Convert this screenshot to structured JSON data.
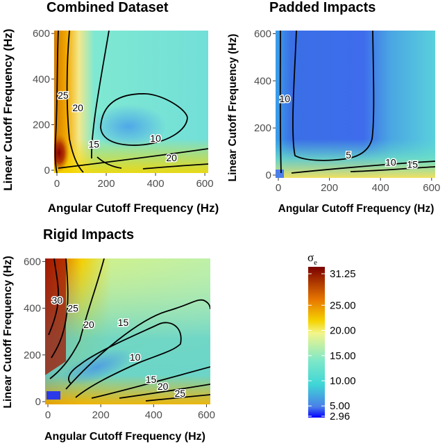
{
  "chart_data": [
    {
      "type": "heatmap",
      "id": "combined",
      "title": "Combined Dataset",
      "xlabel": "Angular Cutoff Frequency (Hz)",
      "ylabel": "Linear Cutoff Frequency (Hz)",
      "xlim": [
        0,
        625
      ],
      "ylim": [
        0,
        625
      ],
      "xticks": [
        0,
        200,
        400,
        600
      ],
      "yticks": [
        0,
        200,
        400,
        600
      ],
      "contour_labels": [
        {
          "text": "25",
          "x": 25,
          "y": 330
        },
        {
          "text": "20",
          "x": 85,
          "y": 275
        },
        {
          "text": "15",
          "x": 150,
          "y": 115
        },
        {
          "text": "10",
          "x": 400,
          "y": 140
        },
        {
          "text": "20",
          "x": 465,
          "y": 55
        }
      ]
    },
    {
      "type": "heatmap",
      "id": "padded",
      "title": "Padded Impacts",
      "xlabel": "Angular Cutoff Frequency (Hz)",
      "ylabel": "Linear Cutoff Frequency (Hz)",
      "xlim": [
        0,
        625
      ],
      "ylim": [
        0,
        625
      ],
      "xticks": [
        0,
        200,
        400,
        600
      ],
      "yticks": [
        0,
        200,
        400,
        600
      ],
      "contour_labels": [
        {
          "text": "10",
          "x": 25,
          "y": 325
        },
        {
          "text": "5",
          "x": 275,
          "y": 85
        },
        {
          "text": "10",
          "x": 440,
          "y": 55
        },
        {
          "text": "15",
          "x": 525,
          "y": 45
        }
      ]
    },
    {
      "type": "heatmap",
      "id": "rigid",
      "title": "Rigid Impacts",
      "xlabel": "Angular Cutoff Frequency (Hz)",
      "ylabel": "Linear Cutoff Frequency (Hz)",
      "xlim": [
        0,
        625
      ],
      "ylim": [
        0,
        625
      ],
      "xticks": [
        0,
        200,
        400,
        600
      ],
      "yticks": [
        0,
        200,
        400,
        600
      ],
      "contour_labels": [
        {
          "text": "30",
          "x": 35,
          "y": 435
        },
        {
          "text": "25",
          "x": 95,
          "y": 400
        },
        {
          "text": "20",
          "x": 155,
          "y": 330
        },
        {
          "text": "15",
          "x": 285,
          "y": 340
        },
        {
          "text": "10",
          "x": 330,
          "y": 190
        },
        {
          "text": "15",
          "x": 390,
          "y": 95
        },
        {
          "text": "20",
          "x": 435,
          "y": 65
        },
        {
          "text": "25",
          "x": 500,
          "y": 35
        }
      ]
    }
  ],
  "legend": {
    "title": "σ",
    "title_sub": "e",
    "colors": [
      "#0000ff",
      "#4a7ee8",
      "#3fd6d6",
      "#7fe8c8",
      "#f3f58a",
      "#f5d400",
      "#e87800",
      "#7a0000"
    ],
    "ticks": [
      "31.25",
      "25.00",
      "20.00",
      "15.00",
      "10.00",
      "5.00",
      "2.96"
    ],
    "tick_values": [
      31.25,
      25,
      20,
      15,
      10,
      5,
      2.96
    ],
    "range": [
      2.96,
      31.25
    ]
  }
}
